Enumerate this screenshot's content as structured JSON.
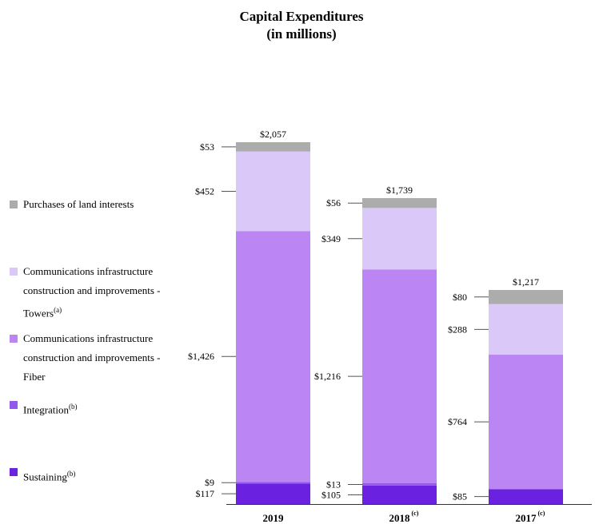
{
  "chart_data": {
    "type": "bar",
    "stacked": true,
    "title": "Capital Expenditures",
    "subtitle": "(in millions)",
    "categories": [
      "2019",
      "2018",
      "2017"
    ],
    "category_footnotes": [
      "",
      "(c)",
      "(c)"
    ],
    "totals": [
      2057,
      1739,
      1217
    ],
    "total_labels": [
      "$2,057",
      "$1,739",
      "$1,217"
    ],
    "series": [
      {
        "name": "Sustaining",
        "footnote": "(b)",
        "color": "#6a22e0",
        "values": [
          117,
          105,
          85
        ],
        "labels": [
          "$117",
          "$105",
          "$85"
        ]
      },
      {
        "name": "Integration",
        "footnote": "(b)",
        "color": "#9358ec",
        "values": [
          9,
          13,
          0
        ],
        "labels": [
          "$9",
          "$13",
          ""
        ]
      },
      {
        "name": "Communications infrastructure construction and improvements - Fiber",
        "footnote": "",
        "color": "#bb86f4",
        "values": [
          1426,
          1216,
          764
        ],
        "labels": [
          "$1,426",
          "$1,216",
          "$764"
        ]
      },
      {
        "name": "Communications infrastructure construction and improvements - Towers",
        "footnote": "(a)",
        "color": "#d9c8f8",
        "values": [
          452,
          349,
          288
        ],
        "labels": [
          "$452",
          "$349",
          "$288"
        ]
      },
      {
        "name": "Purchases of land interests",
        "footnote": "",
        "color": "#acacac",
        "values": [
          53,
          56,
          80
        ],
        "labels": [
          "$53",
          "$56",
          "$80"
        ]
      }
    ],
    "legend_position": "left",
    "grid": false
  },
  "legend": [
    {
      "lines": [
        "Purchases of land interests"
      ],
      "footnote": "",
      "color": "#acacac"
    },
    {
      "lines": [
        "Communications infrastructure",
        "construction and improvements -",
        "Towers"
      ],
      "footnote": "(a)",
      "color": "#d9c8f8"
    },
    {
      "lines": [
        "Communications infrastructure",
        "construction and improvements -",
        "Fiber"
      ],
      "footnote": "",
      "color": "#bb86f4"
    },
    {
      "lines": [
        "Integration"
      ],
      "footnote": "(b)",
      "color": "#9358ec"
    },
    {
      "lines": [
        "Sustaining"
      ],
      "footnote": "(b)",
      "color": "#6a22e0"
    }
  ]
}
